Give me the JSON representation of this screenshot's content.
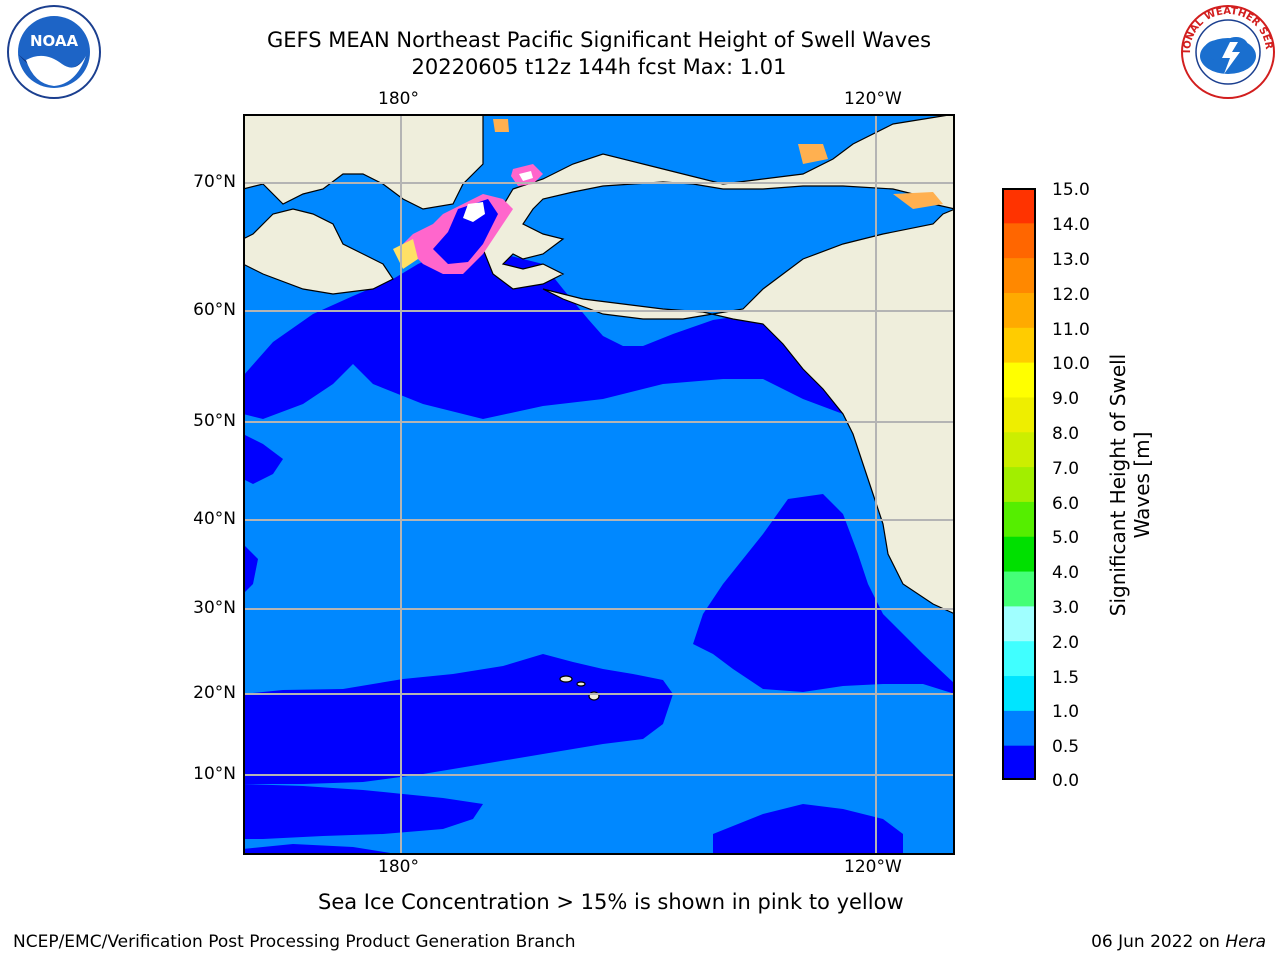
{
  "title": {
    "line1": "GEFS MEAN Northeast Pacific Significant Height of Swell Waves",
    "line2": "20220605 t12z 144h fcst   Max: 1.01"
  },
  "logos": {
    "left": "NOAA",
    "right": "NATIONAL WEATHER SERVICE"
  },
  "map": {
    "lon_labels": [
      "180°",
      "120°W"
    ],
    "lat_labels": [
      "70°N",
      "60°N",
      "50°N",
      "40°N",
      "30°N",
      "20°N",
      "10°N"
    ],
    "colors": {
      "ocean_low": "#0000ff",
      "ocean_mid": "#0088ff",
      "land": "#efeedc",
      "grid": "#b4b4b4",
      "ice_pink": "#ff66cc",
      "ice_yellow": "#ffe066"
    }
  },
  "colorbar": {
    "label": "Significant Height of Swell Waves [m]",
    "ticks": [
      "15.0",
      "14.0",
      "13.0",
      "12.0",
      "11.0",
      "10.0",
      "9.0",
      "8.0",
      "7.0",
      "6.0",
      "5.0",
      "4.0",
      "3.0",
      "2.0",
      "1.5",
      "1.0",
      "0.5",
      "0.0"
    ],
    "colors": [
      "#0000ff",
      "#0080ff",
      "#00e5ff",
      "#40ffff",
      "#a0ffff",
      "#44ff77",
      "#00e000",
      "#55ee00",
      "#a2ee00",
      "#ccee00",
      "#eeee00",
      "#ffff00",
      "#ffcc00",
      "#ffaa00",
      "#ff8800",
      "#ff6600",
      "#ff3300"
    ]
  },
  "note": "Sea Ice Concentration > 15% is shown in pink to yellow",
  "footer": {
    "left": "NCEP/EMC/Verification Post Processing Product Generation Branch",
    "right_prefix": "06 Jun 2022 on ",
    "right_host": "Hera"
  }
}
